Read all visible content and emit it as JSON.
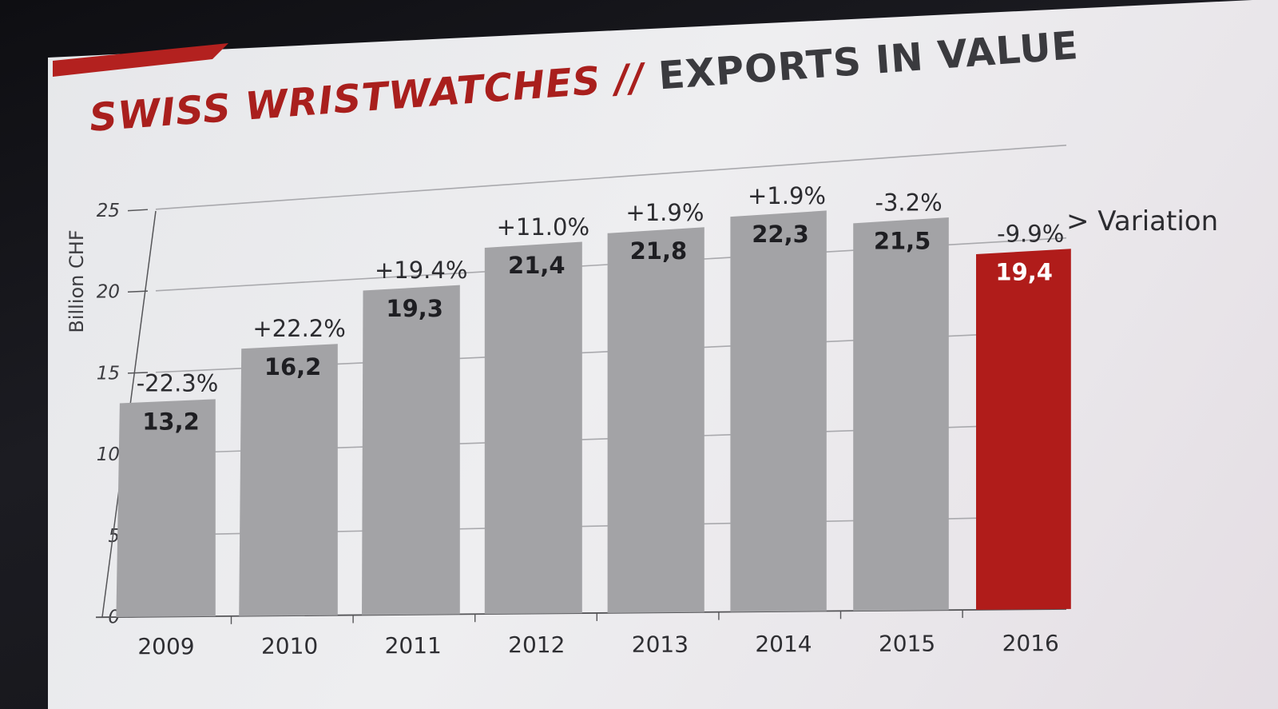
{
  "title_part1": "SWISS WRISTWATCHES",
  "title_sep": "//",
  "title_part2": "EXPORTS IN VALUE",
  "variation_legend": "> Variation",
  "colors": {
    "bar": "#a3a3a6",
    "highlight": "#b01c1a",
    "grid": "#a9a9ad",
    "axis": "#555558"
  },
  "chart_data": {
    "type": "bar",
    "title": "SWISS WRISTWATCHES // EXPORTS IN VALUE",
    "xlabel": "",
    "ylabel": "Billion CHF",
    "ylim": [
      0,
      25
    ],
    "yticks": [
      0,
      5,
      10,
      15,
      20,
      25
    ],
    "grid": true,
    "categories": [
      "2009",
      "2010",
      "2011",
      "2012",
      "2013",
      "2014",
      "2015",
      "2016"
    ],
    "values": [
      13.2,
      16.2,
      19.3,
      21.4,
      21.8,
      22.3,
      21.5,
      19.4
    ],
    "value_labels": [
      "13,2",
      "16,2",
      "19,3",
      "21,4",
      "21,8",
      "22,3",
      "21,5",
      "19,4"
    ],
    "variation_labels": [
      "-22.3%",
      "+22.2%",
      "+19.4%",
      "+11.0%",
      "+1.9%",
      "+1.9%",
      "-3.2%",
      "-9.9%"
    ],
    "highlight_category": "2016"
  }
}
